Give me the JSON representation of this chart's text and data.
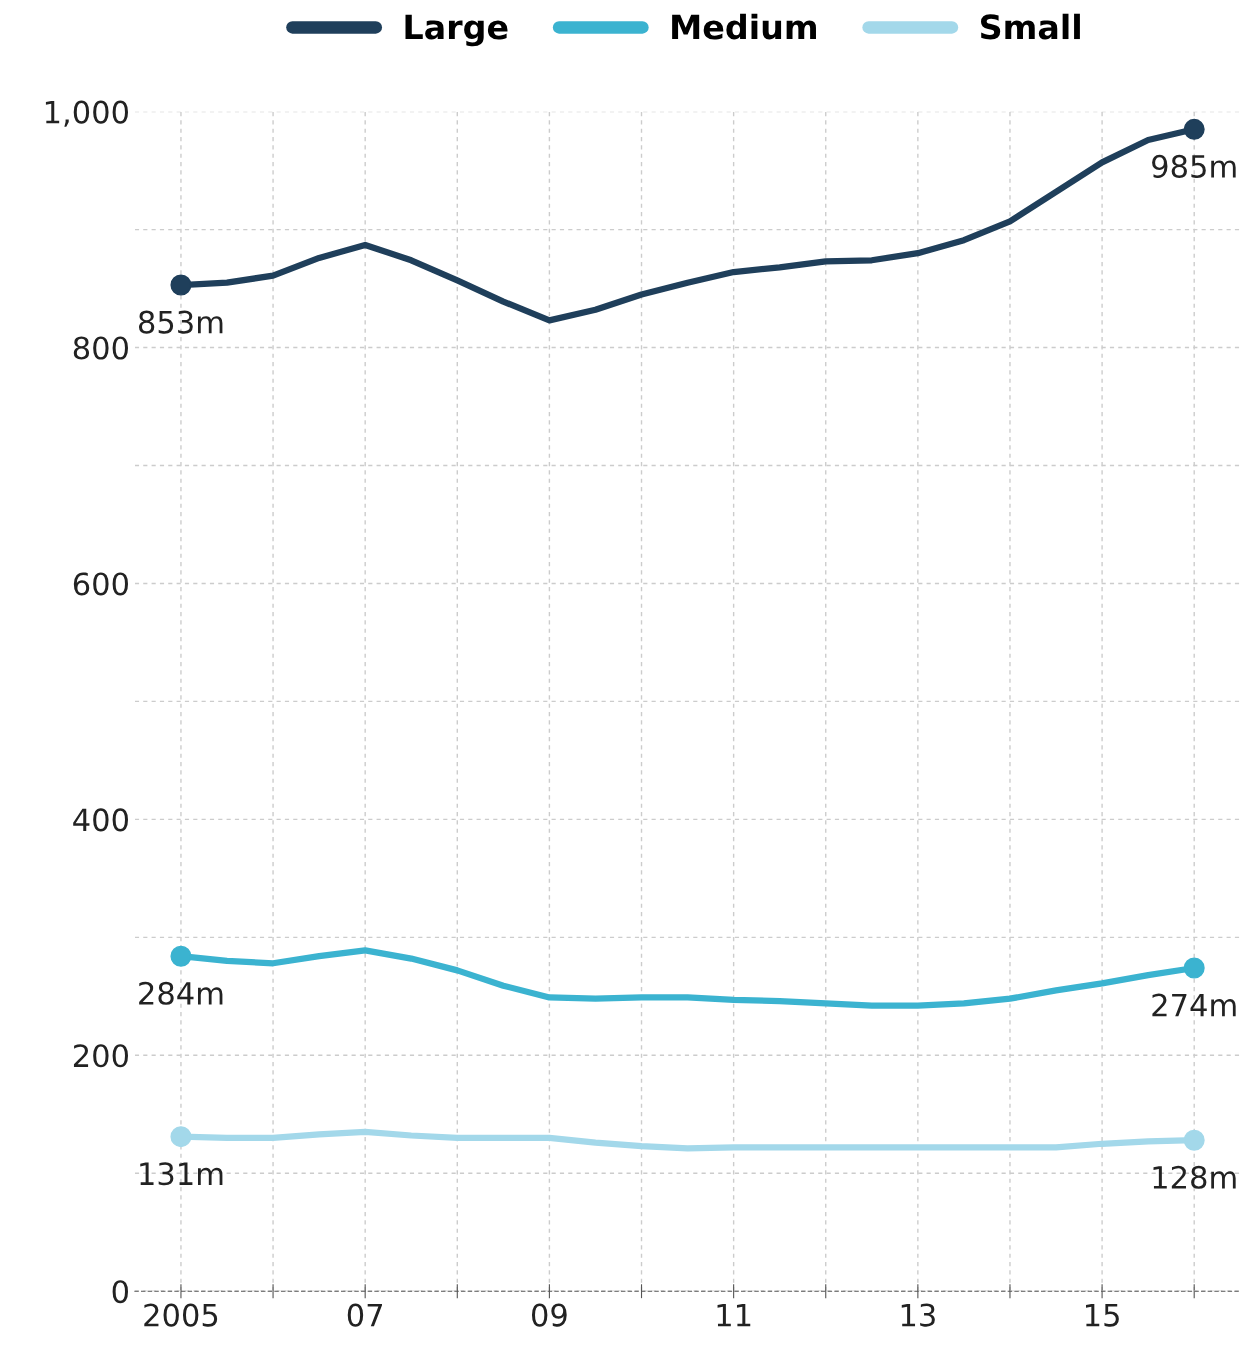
{
  "chart_data": {
    "type": "line",
    "x": [
      2005,
      2005.5,
      2006,
      2006.5,
      2007,
      2007.5,
      2008,
      2008.5,
      2009,
      2009.5,
      2010,
      2010.5,
      2011,
      2011.5,
      2012,
      2012.5,
      2013,
      2013.5,
      2014,
      2014.5,
      2015,
      2015.5,
      2016
    ],
    "series": [
      {
        "name": "Large",
        "color": "#1f3f5b",
        "values": [
          853,
          855,
          861,
          876,
          887,
          874,
          857,
          839,
          823,
          832,
          845,
          855,
          864,
          868,
          873,
          874,
          880,
          891,
          907,
          932,
          957,
          976,
          985
        ],
        "value_labels": [
          "853m",
          null,
          null,
          null,
          null,
          null,
          null,
          null,
          null,
          null,
          null,
          null,
          null,
          null,
          null,
          null,
          null,
          null,
          null,
          null,
          null,
          null,
          "985m"
        ]
      },
      {
        "name": "Medium",
        "color": "#3bb3d0",
        "values": [
          284,
          280,
          278,
          284,
          289,
          282,
          272,
          259,
          249,
          248,
          249,
          249,
          247,
          246,
          244,
          242,
          242,
          244,
          248,
          255,
          261,
          268,
          274
        ],
        "value_labels": [
          "284m",
          null,
          null,
          null,
          null,
          null,
          null,
          null,
          null,
          null,
          null,
          null,
          null,
          null,
          null,
          null,
          null,
          null,
          null,
          null,
          null,
          null,
          "274m"
        ]
      },
      {
        "name": "Small",
        "color": "#a3d8ea",
        "values": [
          131,
          130,
          130,
          133,
          135,
          132,
          130,
          130,
          130,
          126,
          123,
          121,
          122,
          122,
          122,
          122,
          122,
          122,
          122,
          122,
          125,
          127,
          128
        ],
        "value_labels": [
          "131m",
          null,
          null,
          null,
          null,
          null,
          null,
          null,
          null,
          null,
          null,
          null,
          null,
          null,
          null,
          null,
          null,
          null,
          null,
          null,
          null,
          null,
          "128m"
        ]
      }
    ],
    "xlim": [
      2004.5,
      2016.5
    ],
    "xticks": [
      {
        "value": 2005,
        "label": "2005"
      },
      {
        "value": 2006,
        "label": null
      },
      {
        "value": 2007,
        "label": "07"
      },
      {
        "value": 2008,
        "label": null
      },
      {
        "value": 2009,
        "label": "09"
      },
      {
        "value": 2010,
        "label": null
      },
      {
        "value": 2011,
        "label": "11"
      },
      {
        "value": 2012,
        "label": null
      },
      {
        "value": 2013,
        "label": "13"
      },
      {
        "value": 2014,
        "label": null
      },
      {
        "value": 2015,
        "label": "15"
      },
      {
        "value": 2016,
        "label": null
      }
    ],
    "ylim": [
      0,
      1000
    ],
    "yticks": [
      0,
      {
        "value": 100,
        "label": null
      },
      200,
      {
        "value": 300,
        "label": null
      },
      400,
      {
        "value": 500,
        "label": null
      },
      600,
      {
        "value": 700,
        "label": null
      },
      800,
      {
        "value": 900,
        "label": null
      },
      {
        "value": 1000,
        "label": "1,000"
      }
    ],
    "grid": true,
    "legend": "top",
    "line_style": "solid"
  }
}
